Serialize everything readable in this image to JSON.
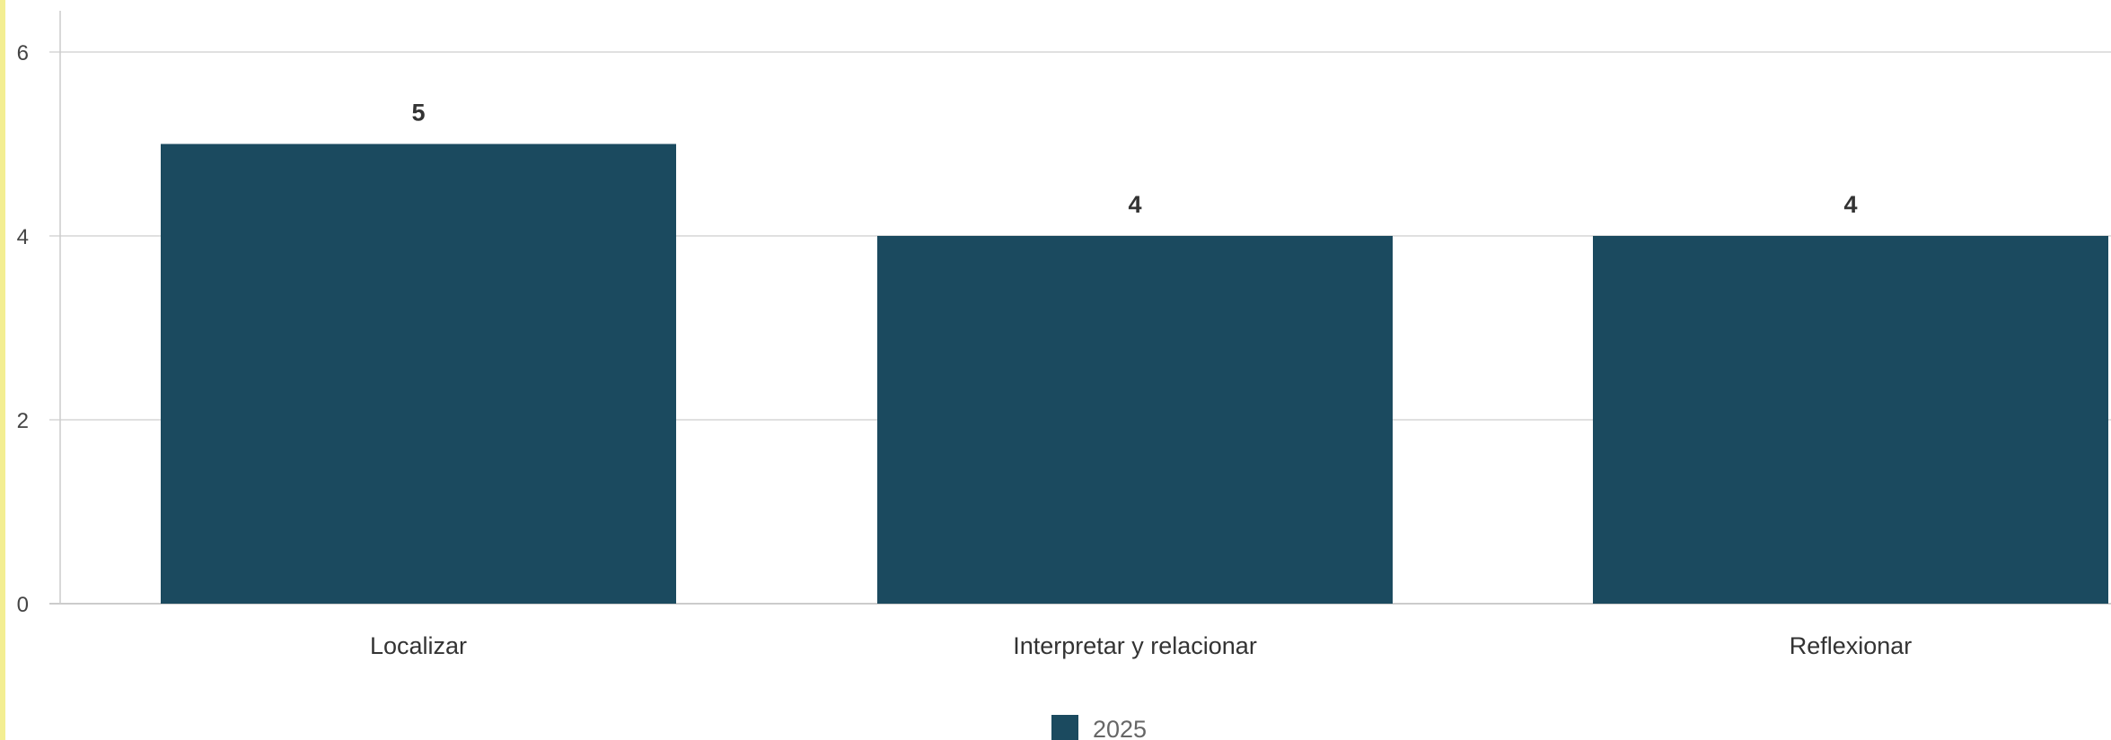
{
  "chart_data": {
    "type": "bar",
    "categories": [
      "Localizar",
      "Interpretar y relacionar",
      "Reflexionar"
    ],
    "series": [
      {
        "name": "2025",
        "values": [
          5,
          4,
          4
        ],
        "color": "#1b4a5f"
      }
    ],
    "yticks": [
      0,
      2,
      4,
      6
    ],
    "ylim": [
      0,
      6.4
    ],
    "grid": true,
    "legend_position": "bottom-center",
    "data_labels": true
  },
  "colors": {
    "accent_border": "#f3ee92",
    "grid": "#e0e0e0",
    "axis": "#cccccc"
  }
}
